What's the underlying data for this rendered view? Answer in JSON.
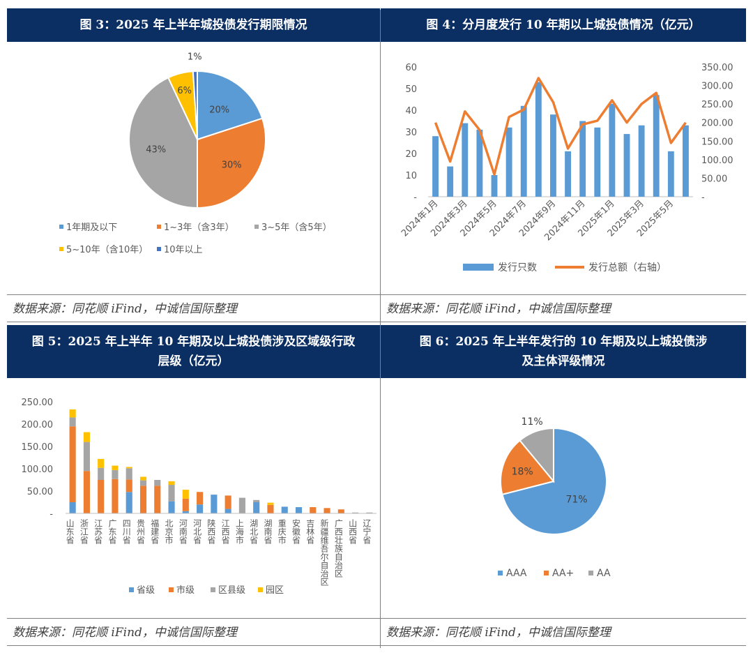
{
  "panels": {
    "p3": {
      "title": "图 3：2025 年上半年城投债发行期限情况",
      "source": "数据来源：同花顺 iFind，中诚信国际整理"
    },
    "p4": {
      "title": "图 4：分月度发行 10 年期以上城投债情况（亿元）",
      "source": "数据来源：同花顺 iFind，中诚信国际整理"
    },
    "p5": {
      "title_line1": "图 5：2025 年上半年 10 年期及以上城投债涉及区域级行政",
      "title_line2": "层级（亿元）",
      "source": "数据来源：同花顺 iFind，中诚信国际整理"
    },
    "p6": {
      "title_line1": "图 6：2025 年上半年发行的 10 年期及以上城投债涉",
      "title_line2": "及主体评级情况",
      "source": "数据来源：同花顺 iFind，中诚信国际整理"
    }
  },
  "chart_data": [
    {
      "id": "fig3",
      "type": "pie",
      "labels": [
        "1年期及以下",
        "1~3年（含3年）",
        "3~5年（含5年）",
        "5~10年（含10年）",
        "10年以上"
      ],
      "values": [
        20,
        30,
        43,
        6,
        1
      ],
      "value_labels": [
        "20%",
        "30%",
        "43%",
        "6%",
        "1%"
      ],
      "colors": [
        "#5b9bd5",
        "#ed7d31",
        "#a5a5a5",
        "#ffc000",
        "#4472c4"
      ],
      "legend": "bottom"
    },
    {
      "id": "fig4",
      "type": "bar",
      "categories": [
        "2024年1月",
        "2024年2月",
        "2024年3月",
        "2024年4月",
        "2024年5月",
        "2024年6月",
        "2024年7月",
        "2024年8月",
        "2024年9月",
        "2024年10月",
        "2024年11月",
        "2024年12月",
        "2025年1月",
        "2025年2月",
        "2025年3月",
        "2025年4月",
        "2025年5月",
        "2025年6月"
      ],
      "tick_labels": [
        "2024年1月",
        "",
        "2024年3月",
        "",
        "2024年5月",
        "",
        "2024年7月",
        "",
        "2024年9月",
        "",
        "2024年11月",
        "",
        "2025年1月",
        "",
        "2025年3月",
        "",
        "2025年5月",
        ""
      ],
      "series": [
        {
          "name": "发行只数",
          "type": "bar",
          "axis": "left",
          "color": "#5b9bd5",
          "values": [
            28,
            14,
            34,
            31,
            10,
            32,
            42,
            53,
            38,
            21,
            35,
            32,
            43,
            29,
            33,
            47,
            21,
            33
          ]
        },
        {
          "name": "发行总额（右轴）",
          "type": "line",
          "axis": "right",
          "color": "#ed7d31",
          "values": [
            200,
            95,
            230,
            180,
            60,
            215,
            235,
            320,
            255,
            130,
            195,
            205,
            260,
            200,
            250,
            280,
            145,
            200
          ]
        }
      ],
      "ylim_left": [
        0,
        60
      ],
      "yticks_left": [
        "-",
        "10",
        "20",
        "30",
        "40",
        "50",
        "60"
      ],
      "ylim_right": [
        0,
        350
      ],
      "yticks_right": [
        "-",
        "50.00",
        "100.00",
        "150.00",
        "200.00",
        "250.00",
        "300.00",
        "350.00"
      ],
      "legend": "bottom"
    },
    {
      "id": "fig5",
      "type": "bar",
      "stacked": true,
      "categories": [
        "山东省",
        "浙江省",
        "江苏省",
        "广东省",
        "四川省",
        "贵州省",
        "福建省",
        "北京市",
        "河南省",
        "河北省",
        "陕西省",
        "江西省",
        "上海市",
        "湖北省",
        "湖南省",
        "重庆市",
        "安徽省",
        "吉林省",
        "新疆维吾尔自治区",
        "广西壮族自治区",
        "山西省",
        "辽宁省"
      ],
      "series": [
        {
          "name": "省级",
          "color": "#5b9bd5",
          "values": [
            25,
            0,
            0,
            0,
            48,
            0,
            0,
            27,
            5,
            20,
            42,
            10,
            0,
            25,
            0,
            15,
            14,
            0,
            0,
            0,
            0,
            0
          ]
        },
        {
          "name": "市级",
          "color": "#ed7d31",
          "values": [
            170,
            95,
            75,
            77,
            28,
            62,
            62,
            0,
            28,
            28,
            0,
            30,
            0,
            0,
            19,
            0,
            0,
            14,
            12,
            9,
            0,
            0
          ]
        },
        {
          "name": "区县级",
          "color": "#a5a5a5",
          "values": [
            20,
            65,
            27,
            20,
            25,
            12,
            13,
            37,
            0,
            0,
            0,
            0,
            35,
            5,
            0,
            0,
            0,
            0,
            0,
            0,
            2,
            2
          ]
        },
        {
          "name": "园区",
          "color": "#ffc000",
          "values": [
            18,
            22,
            20,
            10,
            3,
            8,
            0,
            8,
            20,
            0,
            0,
            0,
            0,
            0,
            5,
            0,
            0,
            0,
            0,
            0,
            0,
            0
          ]
        }
      ],
      "ylim": [
        0,
        250
      ],
      "yticks": [
        "-",
        "50.00",
        "100.00",
        "150.00",
        "200.00",
        "250.00"
      ],
      "legend": "bottom"
    },
    {
      "id": "fig6",
      "type": "pie",
      "labels": [
        "AAA",
        "AA+",
        "AA"
      ],
      "values": [
        71,
        18,
        11
      ],
      "value_labels": [
        "71%",
        "18%",
        "11%"
      ],
      "colors": [
        "#5b9bd5",
        "#ed7d31",
        "#a5a5a5"
      ],
      "legend": "bottom"
    }
  ]
}
